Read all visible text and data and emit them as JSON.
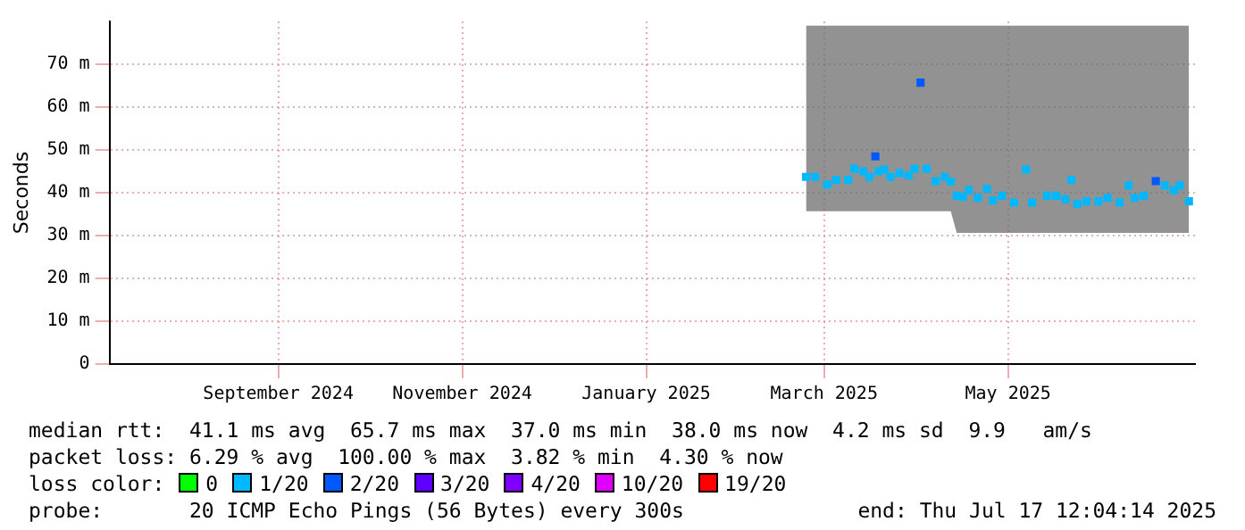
{
  "chart_data": {
    "type": "scatter",
    "ylabel": "Seconds",
    "legend_title": "loss color:",
    "legend": "bottom",
    "grid": true,
    "marker": "square",
    "xlim": [
      "2024-07-22",
      "2025-07-17"
    ],
    "xticks": [
      {
        "value": "2024-09-16",
        "label": "September 2024"
      },
      {
        "value": "2024-11-16",
        "label": "November 2024"
      },
      {
        "value": "2025-01-16",
        "label": "January 2025"
      },
      {
        "value": "2025-03-16",
        "label": "March 2025"
      },
      {
        "value": "2025-05-16",
        "label": "May 2025"
      }
    ],
    "ylim": [
      0,
      80
    ],
    "yticks": [
      0,
      {
        "value": 10,
        "label": "10 m"
      },
      {
        "value": 20,
        "label": "20 m"
      },
      {
        "value": 30,
        "label": "30 m"
      },
      {
        "value": 40,
        "label": "40 m"
      },
      {
        "value": 50,
        "label": "50 m"
      },
      {
        "value": 60,
        "label": "60 m"
      },
      {
        "value": 70,
        "label": "70 m"
      }
    ],
    "x": [
      "2025-03-10",
      "2025-03-13",
      "2025-03-17",
      "2025-03-20",
      "2025-03-24",
      "2025-03-26",
      "2025-03-29",
      "2025-03-31",
      "2025-04-02",
      "2025-04-03",
      "2025-04-05",
      "2025-04-07",
      "2025-04-10",
      "2025-04-13",
      "2025-04-15",
      "2025-04-17",
      "2025-04-19",
      "2025-04-22",
      "2025-04-25",
      "2025-04-27",
      "2025-04-29",
      "2025-05-01",
      "2025-05-03",
      "2025-05-06",
      "2025-05-09",
      "2025-05-11",
      "2025-05-14",
      "2025-05-18",
      "2025-05-22",
      "2025-05-24",
      "2025-05-29",
      "2025-06-01",
      "2025-06-04",
      "2025-06-06",
      "2025-06-08",
      "2025-06-11",
      "2025-06-15",
      "2025-06-18",
      "2025-06-22",
      "2025-06-25",
      "2025-06-27",
      "2025-06-30",
      "2025-07-04",
      "2025-07-07",
      "2025-07-10",
      "2025-07-12",
      "2025-07-15"
    ],
    "series": [
      {
        "name": "0",
        "color": "#00ff00",
        "values": [
          null,
          null,
          null,
          null,
          null,
          null,
          null,
          null,
          null,
          null,
          null,
          null,
          null,
          null,
          null,
          null,
          null,
          null,
          null,
          null,
          null,
          null,
          null,
          null,
          null,
          null,
          null,
          null,
          null,
          null,
          null,
          null,
          null,
          null,
          null,
          null,
          null,
          null,
          null,
          null,
          null,
          null,
          null,
          null,
          null,
          null,
          null
        ]
      },
      {
        "name": "1/20",
        "color": "#00b8ff",
        "values": [
          43.7,
          43.7,
          41.9,
          43.0,
          43.0,
          45.6,
          45.0,
          43.7,
          null,
          45.0,
          45.4,
          43.7,
          44.6,
          44.0,
          45.6,
          null,
          45.6,
          42.7,
          43.7,
          42.6,
          39.3,
          39.0,
          40.6,
          38.8,
          40.9,
          38.2,
          39.3,
          37.7,
          45.4,
          37.7,
          39.3,
          39.3,
          38.5,
          43.0,
          37.4,
          38.0,
          38.0,
          38.8,
          37.7,
          41.7,
          38.8,
          39.3,
          null,
          41.7,
          40.6,
          41.7,
          38.0
        ],
        "lower": [
          35.7,
          35.7,
          35.7,
          35.7,
          35.7,
          35.7,
          35.7,
          35.7,
          35.7,
          35.7,
          35.7,
          35.7,
          35.7,
          35.7,
          35.7,
          35.7,
          35.7,
          35.7,
          35.7,
          35.7,
          30.6,
          30.6,
          30.6,
          30.6,
          30.6,
          30.6,
          30.6,
          30.6,
          30.6,
          30.6,
          30.6,
          30.6,
          30.6,
          30.6,
          30.6,
          30.6,
          30.6,
          30.6,
          30.6,
          30.6,
          30.6,
          30.6,
          30.6,
          30.6,
          30.6,
          30.6,
          30.6
        ],
        "upper": [
          79,
          79,
          79,
          79,
          79,
          79,
          79,
          79,
          79,
          79,
          79,
          79,
          79,
          79,
          79,
          79,
          79,
          79,
          79,
          79,
          79,
          79,
          79,
          79,
          79,
          79,
          79,
          79,
          79,
          79,
          79,
          79,
          79,
          79,
          79,
          79,
          79,
          79,
          79,
          79,
          79,
          79,
          79,
          79,
          79,
          79,
          79
        ]
      },
      {
        "name": "2/20",
        "color": "#0059ff",
        "values": [
          null,
          null,
          null,
          null,
          null,
          null,
          null,
          null,
          48.5,
          null,
          null,
          null,
          null,
          null,
          null,
          65.7,
          null,
          null,
          null,
          null,
          null,
          null,
          null,
          null,
          null,
          null,
          null,
          null,
          null,
          null,
          null,
          null,
          null,
          null,
          null,
          null,
          null,
          null,
          null,
          null,
          null,
          null,
          42.7,
          null,
          null,
          null,
          null
        ]
      },
      {
        "name": "3/20",
        "color": "#5e00ff",
        "values": [
          null,
          null,
          null,
          null,
          null,
          null,
          null,
          null,
          null,
          null,
          null,
          null,
          null,
          null,
          null,
          null,
          null,
          null,
          null,
          null,
          null,
          null,
          null,
          null,
          null,
          null,
          null,
          null,
          null,
          null,
          null,
          null,
          null,
          null,
          null,
          null,
          null,
          null,
          null,
          null,
          null,
          null,
          null,
          null,
          null,
          null,
          null
        ]
      },
      {
        "name": "4/20",
        "color": "#7e00ff",
        "values": [
          null,
          null,
          null,
          null,
          null,
          null,
          null,
          null,
          null,
          null,
          null,
          null,
          null,
          null,
          null,
          null,
          null,
          null,
          null,
          null,
          null,
          null,
          null,
          null,
          null,
          null,
          null,
          null,
          null,
          null,
          null,
          null,
          null,
          null,
          null,
          null,
          null,
          null,
          null,
          null,
          null,
          null,
          null,
          null,
          null,
          null,
          null
        ]
      },
      {
        "name": "10/20",
        "color": "#dd00ff",
        "values": [
          null,
          null,
          null,
          null,
          null,
          null,
          null,
          null,
          null,
          null,
          null,
          null,
          null,
          null,
          null,
          null,
          null,
          null,
          null,
          null,
          null,
          null,
          null,
          null,
          null,
          null,
          null,
          null,
          null,
          null,
          null,
          null,
          null,
          null,
          null,
          null,
          null,
          null,
          null,
          null,
          null,
          null,
          null,
          null,
          null,
          null,
          null
        ]
      },
      {
        "name": "19/20",
        "color": "#ff0000",
        "values": [
          null,
          null,
          null,
          null,
          null,
          null,
          null,
          null,
          null,
          null,
          null,
          null,
          null,
          null,
          null,
          null,
          null,
          null,
          null,
          null,
          null,
          null,
          null,
          null,
          null,
          null,
          null,
          null,
          null,
          null,
          null,
          null,
          null,
          null,
          null,
          null,
          null,
          null,
          null,
          null,
          null,
          null,
          null,
          null,
          null,
          null,
          null
        ]
      }
    ],
    "annotations": [
      "median rtt:  41.1 ms avg  65.7 ms max  37.0 ms min  38.0 ms now  4.2 ms sd  9.9   am/s",
      "packet loss: 6.29 % avg  100.00 % max  3.82 % min  4.30 % now",
      "probe:       20 ICMP Echo Pings (56 Bytes) every 300s",
      "end: Thu Jul 17 12:04:14 2025"
    ]
  }
}
